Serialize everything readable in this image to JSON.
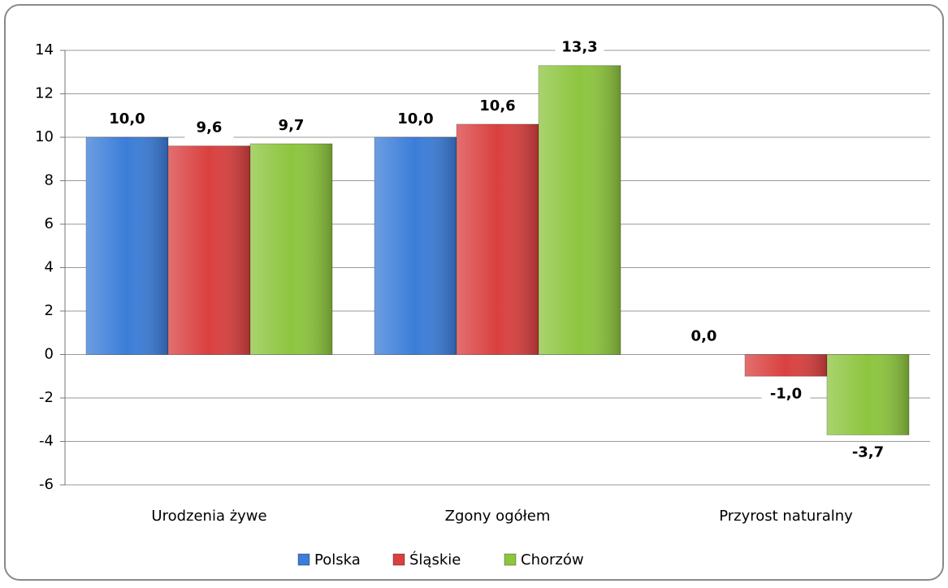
{
  "chart_data": {
    "type": "bar",
    "categories": [
      "Urodzenia żywe",
      "Zgony ogółem",
      "Przyrost naturalny"
    ],
    "series": [
      {
        "name": "Polska",
        "color": "#3b7dd8",
        "values": [
          10.0,
          10.0,
          0.0
        ],
        "value_labels": [
          "10,0",
          "10,0",
          "0,0"
        ]
      },
      {
        "name": "Śląskie",
        "color": "#d9403f",
        "values": [
          9.6,
          10.6,
          -1.0
        ],
        "value_labels": [
          "9,6",
          "10,6",
          "-1,0"
        ]
      },
      {
        "name": "Chorzów",
        "color": "#8dc53e",
        "values": [
          9.7,
          13.3,
          -3.7
        ],
        "value_labels": [
          "9,7",
          "13,3",
          "-3,7"
        ]
      }
    ],
    "ylim": [
      -6,
      14
    ],
    "yticks": [
      -6,
      -4,
      -2,
      0,
      2,
      4,
      6,
      8,
      10,
      12,
      14
    ],
    "grid": true,
    "legend": "bottom"
  }
}
